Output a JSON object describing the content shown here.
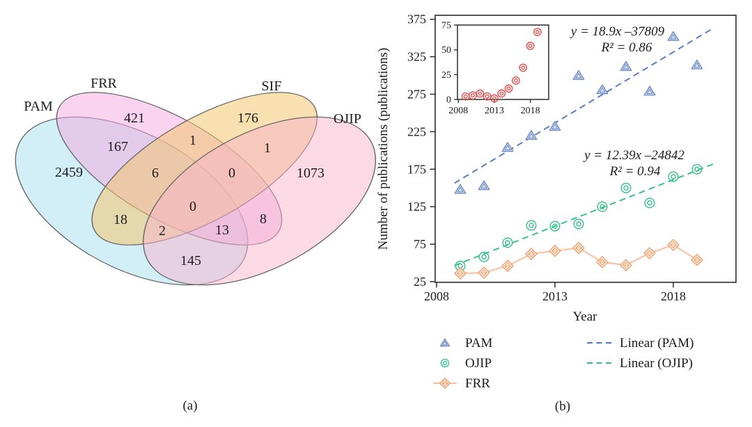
{
  "figure": {
    "panel_a_label": "(a)",
    "panel_b_label": "(b)"
  },
  "venn": {
    "set_labels": {
      "pam": "PAM",
      "frr": "FRR",
      "sif": "SIF",
      "ojip": "OJIP"
    },
    "counts": {
      "pam_only": "2459",
      "frr_only": "421",
      "sif_only": "176",
      "ojip_only": "1073",
      "pam_frr": "167",
      "frr_sif": "1",
      "sif_ojip": "1",
      "pam_frr_sif": "6",
      "frr_sif_ojip": "0",
      "pam_sif": "18",
      "center_all": "0",
      "pam_sif_ojip": "2",
      "pam_frr_ojip": "13",
      "frr_ojip": "8",
      "pam_ojip": "145"
    },
    "colors": {
      "pam_fill": "rgba(173,224,241,0.55)",
      "frr_fill": "rgba(243,167,226,0.50)",
      "sif_fill": "rgba(242,199,112,0.55)",
      "ojip_fill": "rgba(247,179,203,0.50)",
      "outline": "#656565"
    }
  },
  "chart_data": {
    "type": "scatter",
    "xlabel": "Year",
    "ylabel": "Number of publications (publications)",
    "xlim": [
      2008,
      2020.7
    ],
    "ylim": [
      25,
      375
    ],
    "x_ticks": [
      2008,
      2013,
      2018
    ],
    "y_ticks": [
      375,
      325,
      275,
      225,
      175,
      125,
      75,
      25
    ],
    "grid": false,
    "years": [
      2009,
      2010,
      2011,
      2012,
      2013,
      2014,
      2015,
      2016,
      2017,
      2018,
      2019
    ],
    "series": [
      {
        "name": "PAM",
        "marker": "triangle",
        "color": "#6181bf",
        "values": [
          148,
          153,
          204,
          220,
          232,
          300,
          281,
          312,
          279,
          352,
          314
        ]
      },
      {
        "name": "OJIP",
        "marker": "double-circle",
        "color": "#3ec393",
        "values": [
          46,
          58,
          77,
          100,
          99,
          102,
          125,
          150,
          130,
          165,
          175
        ]
      },
      {
        "name": "FRR",
        "marker": "diamond",
        "color": "#ee9c6b",
        "connected": true,
        "line_color": "#f7c3a3",
        "values": [
          36,
          37,
          46,
          62,
          66,
          70,
          51,
          47,
          63,
          74,
          54
        ]
      }
    ],
    "trendlines": [
      {
        "name": "Linear (PAM)",
        "equation": "y = 18.9x –37809",
        "r_squared": "R² = 0.86",
        "slope": 18.9,
        "intercept": -37809,
        "color": "#5377c4",
        "style": "dashed",
        "x_start": 2008.75,
        "x_end": 2019.65
      },
      {
        "name": "Linear (OJIP)",
        "equation": "y = 12.39x –24842",
        "r_squared": "R² = 0.94",
        "slope": 12.39,
        "intercept": -24842,
        "color": "#2ec08b",
        "style": "dashed",
        "x_start": 2008.75,
        "x_end": 2019.75
      }
    ],
    "inset": {
      "marker": "double-circle",
      "color": "#e44f4d",
      "xlim": [
        2008,
        2020
      ],
      "ylim": [
        0,
        75
      ],
      "x_ticks": [
        2008,
        2013,
        2018
      ],
      "y_ticks": [
        0,
        25,
        50,
        75
      ],
      "years": [
        2009,
        2010,
        2011,
        2012,
        2013,
        2014,
        2015,
        2016,
        2017,
        2018,
        2019
      ],
      "values": [
        3,
        4,
        6,
        3,
        1,
        6,
        11,
        19,
        32,
        54,
        68
      ]
    }
  },
  "legend": {
    "marker_items": [
      {
        "label": "PAM",
        "marker": "triangle",
        "color": "#6181bf"
      },
      {
        "label": "OJIP",
        "marker": "double-circle",
        "color": "#3ec393"
      },
      {
        "label": "FRR",
        "marker": "diamond",
        "color": "#ee9c6b"
      }
    ],
    "line_items": [
      {
        "label": "Linear (PAM)",
        "color": "#5377c4"
      },
      {
        "label": "Linear (OJIP)",
        "color": "#2ec08b"
      }
    ]
  }
}
